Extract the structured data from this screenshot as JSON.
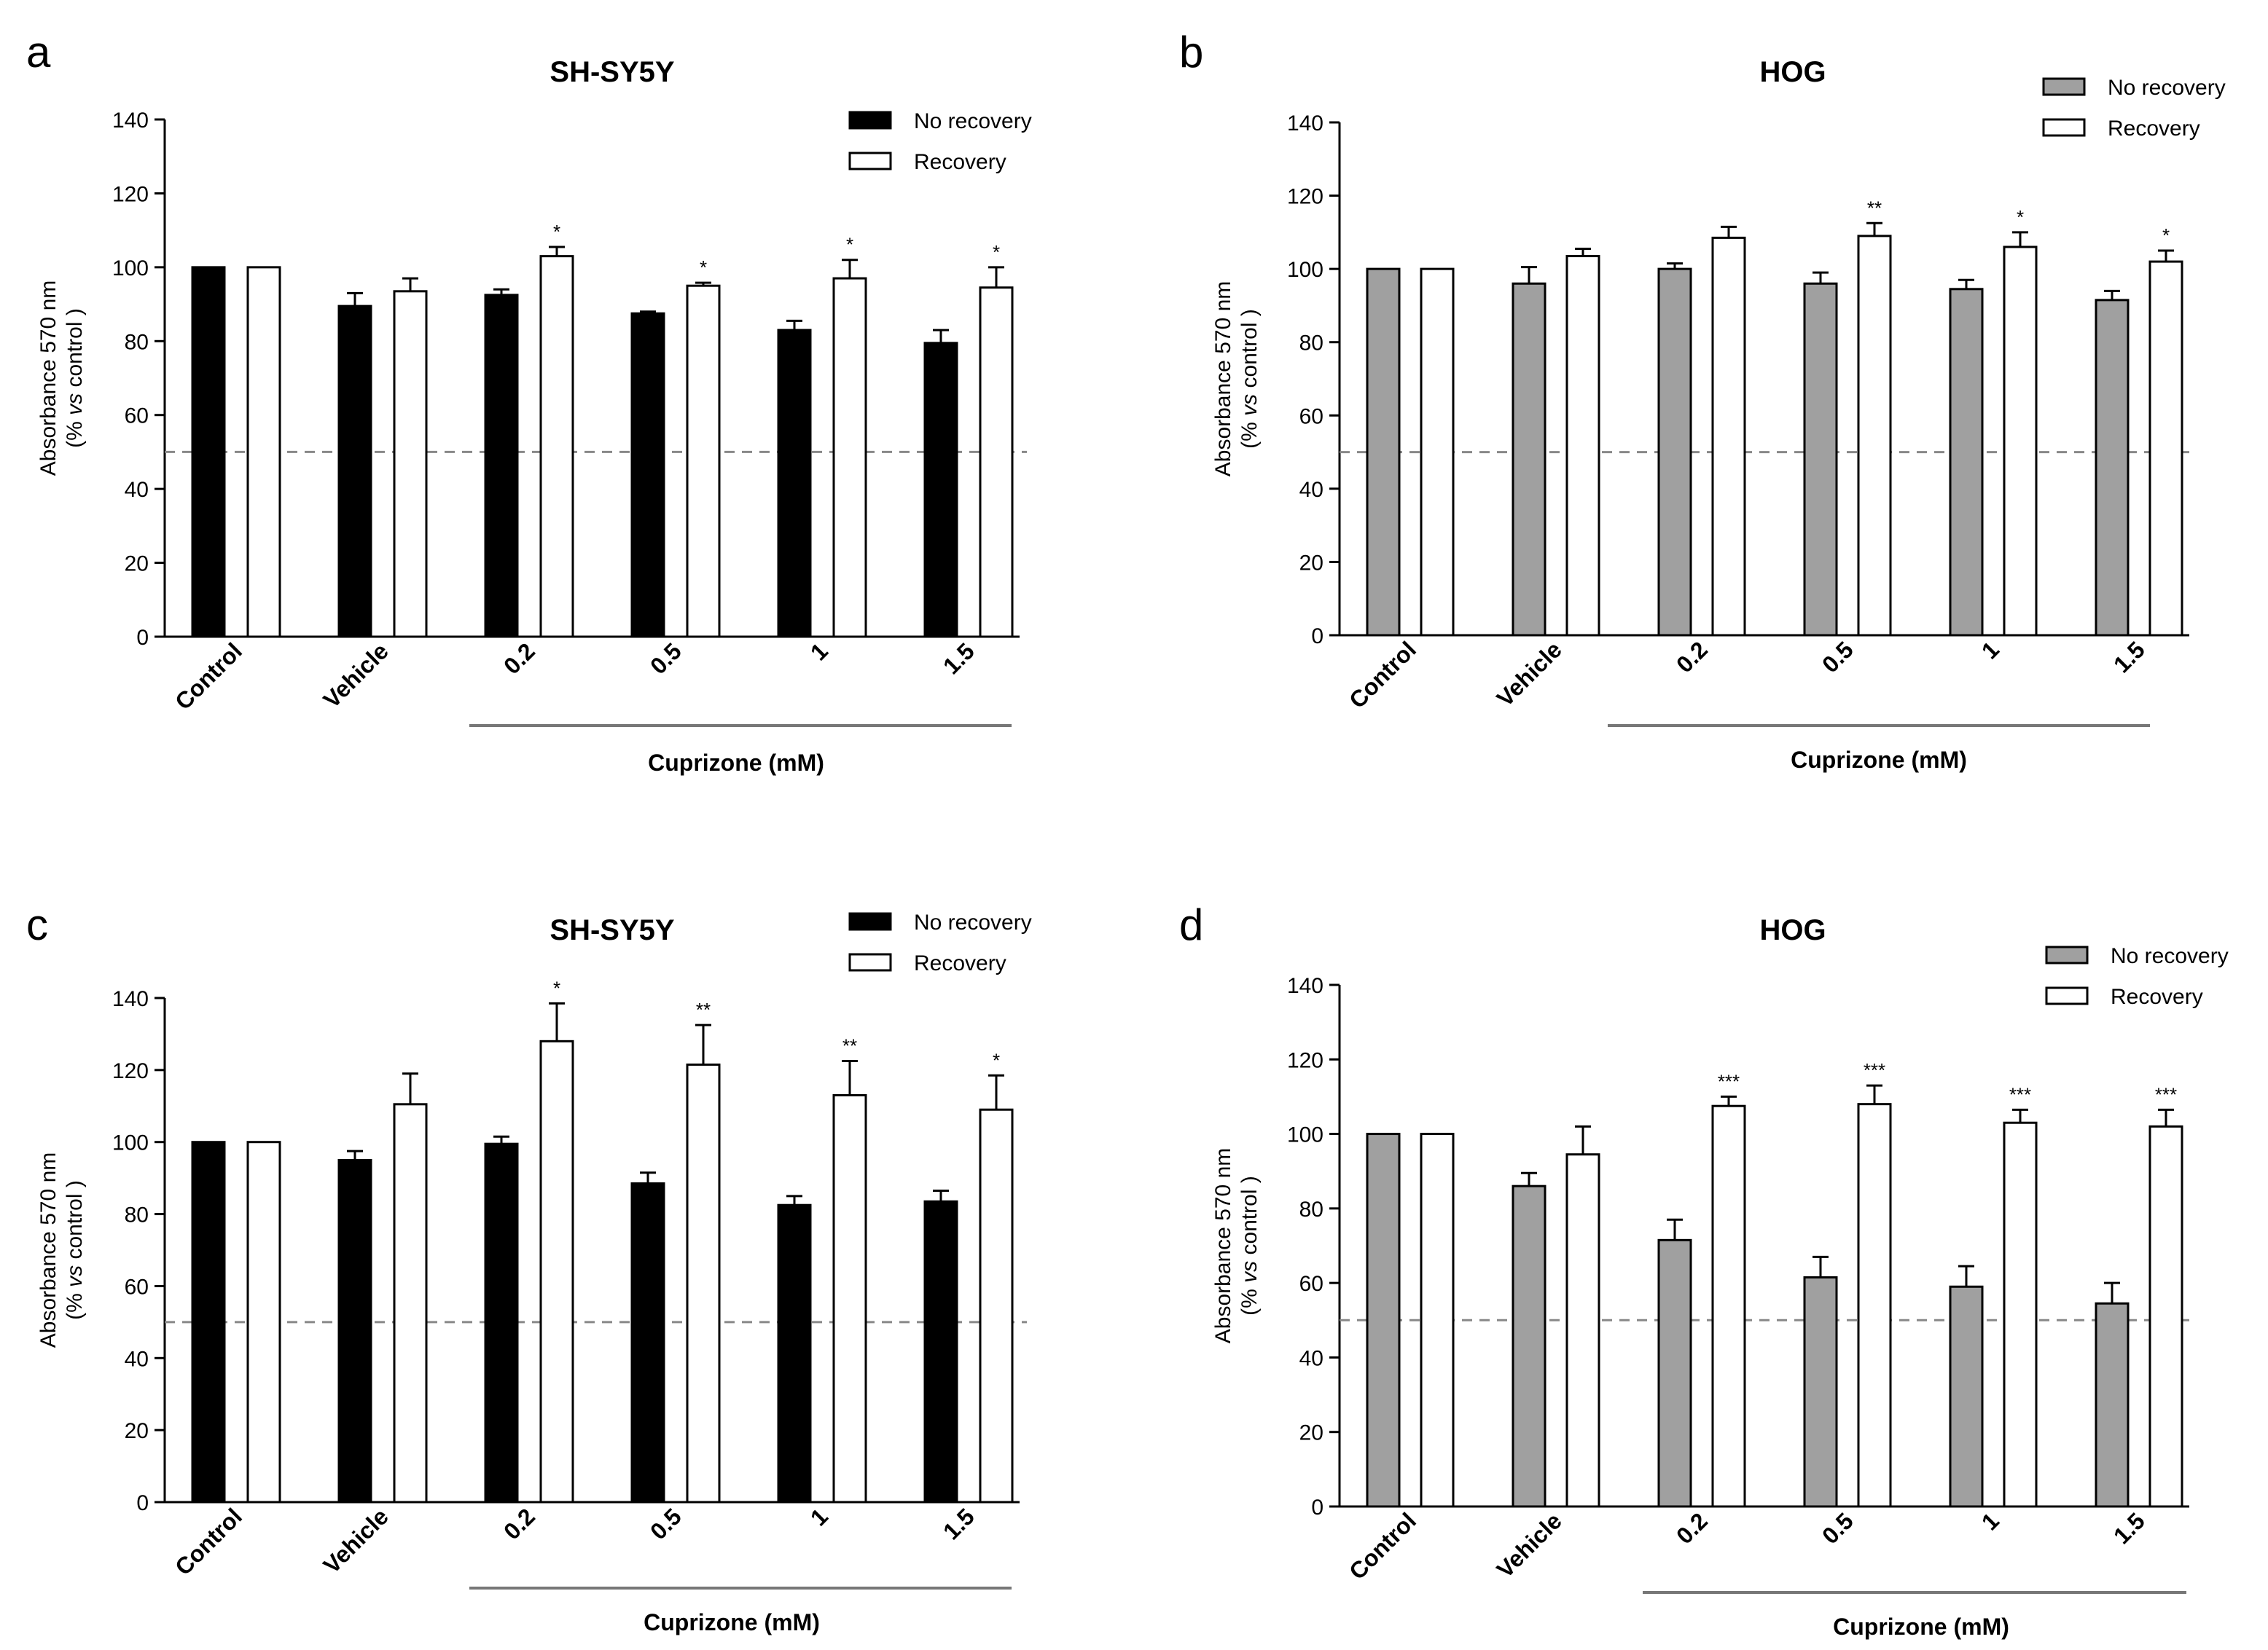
{
  "figure": {
    "caption_hint": ""
  },
  "chart_data": [
    {
      "panel_letter": "a",
      "type": "bar",
      "title": "SH-SY5Y",
      "ylabel": "Absorbance 570 nm",
      "ylabel_sub_prefix": "(% ",
      "ylabel_sub_italic": "vs",
      "ylabel_sub_suffix": " control )",
      "xlabel_group": "Cuprizone (mM)",
      "categories": [
        "Control",
        "Vehicle",
        "0.2",
        "0.5",
        "1",
        "1.5"
      ],
      "ylim": [
        0,
        140
      ],
      "yticks": [
        0,
        20,
        40,
        60,
        80,
        100,
        120,
        140
      ],
      "reference_line": 50,
      "series": [
        {
          "name": "No recovery",
          "color": "#000000",
          "values": [
            100,
            89.5,
            92.5,
            87.5,
            83,
            79.5
          ],
          "errors": [
            0,
            3.5,
            1.5,
            0.5,
            2.5,
            3.5
          ],
          "significance": [
            "",
            "",
            "",
            "",
            "",
            ""
          ]
        },
        {
          "name": "Recovery",
          "color": "#ffffff",
          "values": [
            100,
            93.5,
            103,
            95,
            97,
            94.5
          ],
          "errors": [
            0,
            3.5,
            2.5,
            0.8,
            5,
            5.5
          ],
          "significance": [
            "",
            "",
            "*",
            "*",
            "*",
            "*"
          ]
        }
      ]
    },
    {
      "panel_letter": "b",
      "type": "bar",
      "title": "HOG",
      "ylabel": "Absorbance 570 nm",
      "ylabel_sub_prefix": "(% ",
      "ylabel_sub_italic": "vs",
      "ylabel_sub_suffix": " control )",
      "xlabel_group": "Cuprizone (mM)",
      "categories": [
        "Control",
        "Vehicle",
        "0.2",
        "0.5",
        "1",
        "1.5"
      ],
      "ylim": [
        0,
        140
      ],
      "yticks": [
        0,
        20,
        40,
        60,
        80,
        100,
        120,
        140
      ],
      "reference_line": 50,
      "series": [
        {
          "name": "No recovery",
          "color": "#a0a0a0",
          "values": [
            100,
            96,
            100,
            96,
            94.5,
            91.5
          ],
          "errors": [
            0,
            4.5,
            1.5,
            3,
            2.5,
            2.5
          ],
          "significance": [
            "",
            "",
            "",
            "",
            "",
            ""
          ]
        },
        {
          "name": "Recovery",
          "color": "#ffffff",
          "values": [
            100,
            103.5,
            108.5,
            109,
            106,
            102
          ],
          "errors": [
            0,
            2,
            3,
            3.5,
            4,
            3
          ],
          "significance": [
            "",
            "",
            "",
            "**",
            "*",
            "*"
          ]
        }
      ]
    },
    {
      "panel_letter": "c",
      "type": "bar",
      "title": "SH-SY5Y",
      "ylabel": "Absorbance 570 nm",
      "ylabel_sub_prefix": "(% ",
      "ylabel_sub_italic": "vs",
      "ylabel_sub_suffix": " control )",
      "xlabel_group": "Cuprizone (mM)",
      "categories": [
        "Control",
        "Vehicle",
        "0.2",
        "0.5",
        "1",
        "1.5"
      ],
      "ylim": [
        0,
        140
      ],
      "yticks": [
        0,
        20,
        40,
        60,
        80,
        100,
        120,
        140
      ],
      "reference_line": 50,
      "series": [
        {
          "name": "No recovery",
          "color": "#000000",
          "values": [
            100,
            95,
            99.5,
            88.5,
            82.5,
            83.5
          ],
          "errors": [
            0,
            2.5,
            2,
            3,
            2.5,
            3
          ],
          "significance": [
            "",
            "",
            "",
            "",
            "",
            ""
          ]
        },
        {
          "name": "Recovery",
          "color": "#ffffff",
          "values": [
            100,
            110.5,
            128,
            121.5,
            113,
            109
          ],
          "errors": [
            0,
            8.5,
            10.5,
            11,
            9.5,
            9.5
          ],
          "significance": [
            "",
            "",
            "*",
            "**",
            "**",
            "*"
          ]
        }
      ]
    },
    {
      "panel_letter": "d",
      "type": "bar",
      "title": "HOG",
      "ylabel": "Absorbance 570 nm",
      "ylabel_sub_prefix": "(% ",
      "ylabel_sub_italic": "vs",
      "ylabel_sub_suffix": " control )",
      "xlabel_group": "Cuprizone (mM)",
      "categories": [
        "Control",
        "Vehicle",
        "0.2",
        "0.5",
        "1",
        "1.5"
      ],
      "ylim": [
        0,
        140
      ],
      "yticks": [
        0,
        20,
        40,
        60,
        80,
        100,
        120,
        140
      ],
      "reference_line": 50,
      "series": [
        {
          "name": "No recovery",
          "color": "#a0a0a0",
          "values": [
            100,
            86,
            71.5,
            61.5,
            59,
            54.5
          ],
          "errors": [
            0,
            3.5,
            5.5,
            5.5,
            5.5,
            5.5
          ],
          "significance": [
            "",
            "",
            "",
            "",
            "",
            ""
          ]
        },
        {
          "name": "Recovery",
          "color": "#ffffff",
          "values": [
            100,
            94.5,
            107.5,
            108,
            103,
            102
          ],
          "errors": [
            0,
            7.5,
            2.5,
            5,
            3.5,
            4.5
          ],
          "significance": [
            "",
            "",
            "***",
            "***",
            "***",
            "***"
          ]
        }
      ]
    }
  ]
}
